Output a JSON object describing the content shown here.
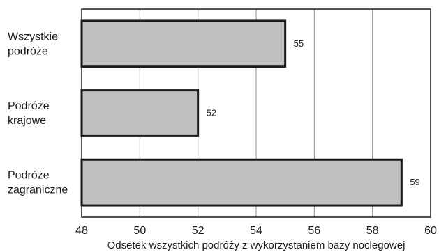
{
  "chart_data": {
    "type": "bar",
    "orientation": "horizontal",
    "categories": [
      [
        "Wszystkie",
        "podróże"
      ],
      [
        "Podróże",
        "krajowe"
      ],
      [
        "Podróże",
        "zagraniczne"
      ]
    ],
    "values": [
      55,
      52,
      59
    ],
    "data_labels": [
      "55",
      "52",
      "59"
    ],
    "xlim": [
      48,
      60
    ],
    "x_ticks": [
      48,
      50,
      52,
      54,
      56,
      58,
      60
    ],
    "x_tick_labels": [
      "48",
      "50",
      "52",
      "54",
      "56",
      "58",
      "60"
    ],
    "xlabel": "Odsetek wszystkich podróży z wykorzystaniem bazy noclegowej",
    "ylabel": "",
    "title": "",
    "grid": "vertical",
    "legend": "none",
    "colors": {
      "bar_fill": "#c0c0c0",
      "bar_stroke": "#1a1a1a",
      "grid": "#8c8c8c",
      "frame": "#1a1a1a"
    }
  }
}
